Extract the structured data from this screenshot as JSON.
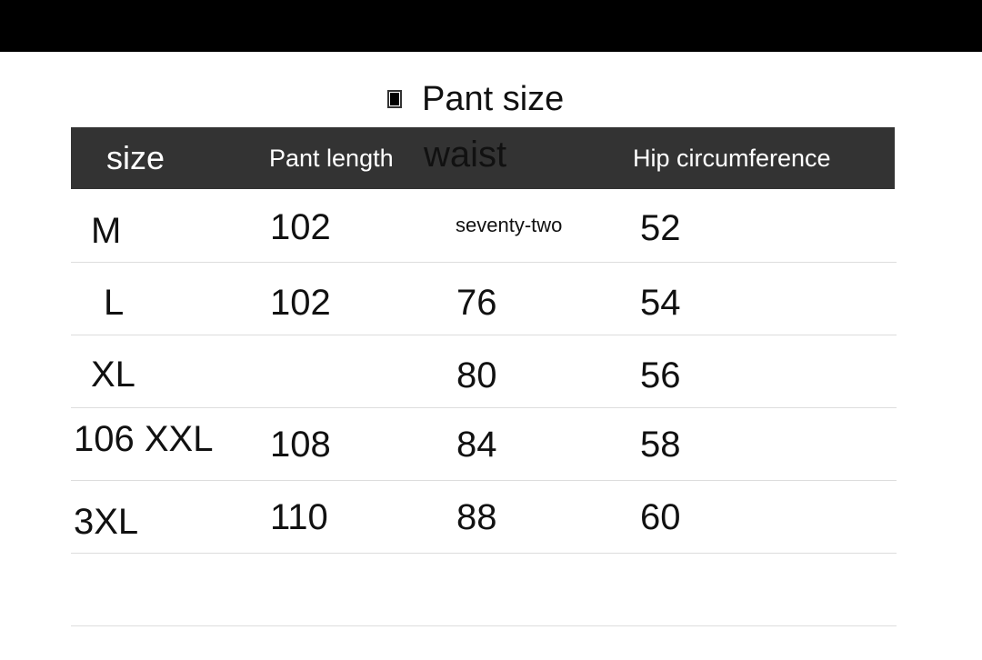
{
  "title": "Pant size",
  "headers": {
    "size": "size",
    "length": "Pant length",
    "waist": "waist",
    "hip": "Hip circumference"
  },
  "rows": [
    {
      "size": "M",
      "length": "102",
      "waist": "seventy-two",
      "hip": "52"
    },
    {
      "size": "L",
      "length": "102",
      "waist": "76",
      "hip": "54"
    },
    {
      "size": "XL",
      "length": "",
      "waist": "80",
      "hip": "56"
    },
    {
      "size": "106 XXL",
      "length": "108",
      "waist": "84",
      "hip": "58"
    },
    {
      "size": "3XL",
      "length": "110",
      "waist": "88",
      "hip": "60"
    }
  ],
  "colors": {
    "header_bg": "#333333",
    "top_band": "#000000"
  }
}
